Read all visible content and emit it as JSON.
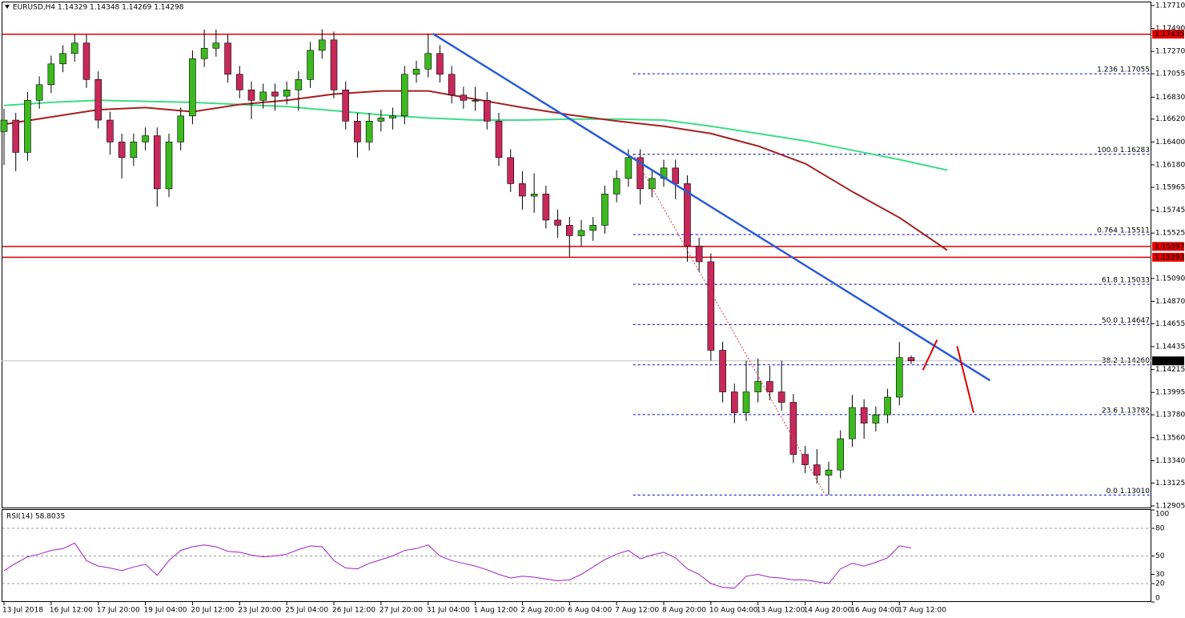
{
  "chart_data": [
    {
      "type": "candlestick",
      "title": "EURUSD,H4 1.14329 1.14348 1.14269 1.14298",
      "categories": [
        "13 Jul 2018",
        null,
        null,
        null,
        "16 Jul 12:00",
        null,
        null,
        null,
        "17 Jul 20:00",
        null,
        null,
        null,
        "19 Jul 04:00",
        null,
        null,
        null,
        "20 Jul 12:00",
        null,
        null,
        null,
        "23 Jul 20:00",
        null,
        null,
        null,
        "25 Jul 04:00",
        null,
        null,
        null,
        "26 Jul 12:00",
        null,
        null,
        null,
        "27 Jul 20:00",
        null,
        null,
        null,
        "31 Jul 04:00",
        null,
        null,
        null,
        "1 Aug 12:00",
        null,
        null,
        null,
        "2 Aug 20:00",
        null,
        null,
        null,
        "6 Aug 04:00",
        null,
        null,
        null,
        "7 Aug 12:00",
        null,
        null,
        null,
        "8 Aug 20:00",
        null,
        null,
        null,
        "10 Aug 04:00",
        null,
        null,
        null,
        "13 Aug 12:00",
        null,
        null,
        null,
        "14 Aug 20:00",
        null,
        null,
        null,
        "16 Aug 04:00",
        null,
        null,
        null,
        "17 Aug 12:00",
        null
      ],
      "open": [
        1.165,
        1.1661,
        1.163,
        1.168,
        1.1695,
        1.1715,
        1.1725,
        1.1735,
        1.17,
        1.1661,
        1.164,
        1.1625,
        1.164,
        1.1646,
        1.1595,
        1.164,
        1.1665,
        1.172,
        1.173,
        1.1735,
        1.1705,
        1.169,
        1.168,
        1.1688,
        1.1684,
        1.169,
        1.17,
        1.1728,
        1.1738,
        1.169,
        1.166,
        1.164,
        1.166,
        1.1663,
        1.1665,
        1.1705,
        1.171,
        1.1725,
        1.1705,
        1.1685,
        1.168,
        1.168,
        1.166,
        1.1625,
        1.16,
        1.1588,
        1.159,
        1.1565,
        1.156,
        1.155,
        1.1555,
        1.156,
        1.159,
        1.1605,
        1.1625,
        1.1595,
        1.1605,
        1.1615,
        1.16,
        1.154,
        1.1525,
        1.144,
        1.14,
        1.138,
        1.14,
        1.141,
        1.14,
        1.139,
        1.134,
        1.133,
        1.132,
        1.1325,
        1.1355,
        1.1385,
        1.137,
        1.1378,
        1.1395,
        1.14329
      ],
      "high": [
        1.1672,
        1.1668,
        1.1688,
        1.1703,
        1.1723,
        1.1733,
        1.1743,
        1.1743,
        1.1708,
        1.1669,
        1.1648,
        1.1648,
        1.1654,
        1.1654,
        1.1648,
        1.1673,
        1.1728,
        1.1748,
        1.1748,
        1.1743,
        1.1713,
        1.1698,
        1.1696,
        1.1696,
        1.1698,
        1.1708,
        1.1736,
        1.1748,
        1.1746,
        1.1698,
        1.1668,
        1.1668,
        1.1671,
        1.1673,
        1.1713,
        1.1718,
        1.1744,
        1.1733,
        1.1713,
        1.1693,
        1.1693,
        1.1688,
        1.1668,
        1.1633,
        1.1612,
        1.161,
        1.1598,
        1.1575,
        1.1568,
        1.1565,
        1.1568,
        1.1598,
        1.1613,
        1.1633,
        1.1633,
        1.1613,
        1.1623,
        1.1623,
        1.1608,
        1.1548,
        1.1533,
        1.1448,
        1.1408,
        1.143,
        1.1432,
        1.1425,
        1.143,
        1.1398,
        1.1348,
        1.1345,
        1.1333,
        1.1363,
        1.1397,
        1.1393,
        1.1386,
        1.1403,
        1.1448,
        1.14348
      ],
      "low": [
        1.1618,
        1.1612,
        1.1622,
        1.1672,
        1.1687,
        1.1707,
        1.1717,
        1.1692,
        1.1653,
        1.1628,
        1.1605,
        1.1617,
        1.1632,
        1.1578,
        1.1587,
        1.1632,
        1.1657,
        1.1712,
        1.1722,
        1.1697,
        1.1682,
        1.1662,
        1.1672,
        1.167,
        1.1676,
        1.167,
        1.1692,
        1.172,
        1.1682,
        1.1652,
        1.1625,
        1.1632,
        1.165,
        1.1652,
        1.1657,
        1.1697,
        1.1702,
        1.1697,
        1.1677,
        1.1672,
        1.167,
        1.1652,
        1.1617,
        1.1592,
        1.1575,
        1.1572,
        1.1557,
        1.1548,
        1.153,
        1.154,
        1.1545,
        1.1552,
        1.1582,
        1.1597,
        1.158,
        1.1587,
        1.1597,
        1.1585,
        1.1525,
        1.1515,
        1.143,
        1.139,
        1.137,
        1.1372,
        1.139,
        1.1392,
        1.1382,
        1.1332,
        1.1322,
        1.1312,
        1.1301,
        1.1317,
        1.1347,
        1.1355,
        1.1362,
        1.137,
        1.1387,
        1.14269
      ],
      "close": [
        1.1661,
        1.163,
        1.168,
        1.1695,
        1.1715,
        1.1725,
        1.1735,
        1.17,
        1.1661,
        1.164,
        1.1625,
        1.164,
        1.1646,
        1.1595,
        1.164,
        1.1665,
        1.172,
        1.173,
        1.1735,
        1.1705,
        1.169,
        1.168,
        1.1688,
        1.1684,
        1.169,
        1.17,
        1.1728,
        1.1738,
        1.169,
        1.166,
        1.164,
        1.166,
        1.1663,
        1.1665,
        1.1705,
        1.171,
        1.1725,
        1.1705,
        1.1685,
        1.168,
        1.168,
        1.166,
        1.1625,
        1.16,
        1.1588,
        1.159,
        1.1565,
        1.156,
        1.155,
        1.1555,
        1.156,
        1.159,
        1.1605,
        1.1625,
        1.1595,
        1.1605,
        1.1615,
        1.16,
        1.154,
        1.1525,
        1.144,
        1.14,
        1.138,
        1.14,
        1.141,
        1.14,
        1.139,
        1.134,
        1.133,
        1.132,
        1.1325,
        1.1355,
        1.1385,
        1.137,
        1.1378,
        1.1395,
        1.1433,
        1.14298
      ],
      "up_color": "#3cb91e",
      "down_color": "#c8285a",
      "ylim": [
        1.12882,
        1.17748
      ],
      "yticks": [
        {
          "value": 1.1771,
          "label": "1.17710"
        },
        {
          "value": 1.1749,
          "label": "1.17490"
        },
        {
          "value": 1.1727,
          "label": "1.17270"
        },
        {
          "value": 1.17055,
          "label": "1.17055"
        },
        {
          "value": 1.1683,
          "label": "1.16830"
        },
        {
          "value": 1.1662,
          "label": "1.16620"
        },
        {
          "value": 1.164,
          "label": "1.16400"
        },
        {
          "value": 1.1618,
          "label": "1.16180"
        },
        {
          "value": 1.15965,
          "label": "1.15965"
        },
        {
          "value": 1.15745,
          "label": "1.15745"
        },
        {
          "value": 1.15525,
          "label": "1.15525"
        },
        {
          "value": 1.1509,
          "label": "1.15090"
        },
        {
          "value": 1.1487,
          "label": "1.14870"
        },
        {
          "value": 1.14655,
          "label": "1.14655"
        },
        {
          "value": 1.14435,
          "label": "1.14435"
        },
        {
          "value": 1.14215,
          "label": "1.14215"
        },
        {
          "value": 1.13995,
          "label": "1.13995"
        },
        {
          "value": 1.1378,
          "label": "1.13780"
        },
        {
          "value": 1.1356,
          "label": "1.13560"
        },
        {
          "value": 1.1334,
          "label": "1.13340"
        },
        {
          "value": 1.13125,
          "label": "1.13125"
        },
        {
          "value": 1.12905,
          "label": "1.12905"
        }
      ],
      "ma": [
        {
          "color": "#3ddc84",
          "values": [
            1.1675,
            1.1678,
            1.168,
            1.1679,
            1.1678,
            1.1676,
            1.1674,
            1.167,
            1.1666,
            1.1663,
            1.1661,
            1.1661,
            1.1662,
            1.1662,
            1.1661,
            1.1655,
            1.1648,
            1.1641,
            1.1632,
            1.1623,
            1.1613
          ]
        },
        {
          "color": "#a52020",
          "values": [
            1.1657,
            1.1664,
            1.1671,
            1.1673,
            1.1669,
            1.1676,
            1.168,
            1.1686,
            1.1689,
            1.1689,
            1.1681,
            1.1673,
            1.1666,
            1.166,
            1.1655,
            1.1648,
            1.1636,
            1.1619,
            1.1592,
            1.1567,
            1.1536
          ]
        }
      ],
      "hlines": [
        {
          "value": 1.17435,
          "color": "#e00000"
        },
        {
          "value": 1.15397,
          "color": "#e00000"
        },
        {
          "value": 1.15293,
          "color": "#e00000"
        }
      ],
      "price_line": {
        "value": 1.14298,
        "color": "#c0c0c0"
      },
      "fib": {
        "color": "#0000cc",
        "levels": [
          {
            "value": 1.17055,
            "label": "1.236 1.17055"
          },
          {
            "value": 1.16283,
            "label": "100.0 1.16283"
          },
          {
            "value": 1.15511,
            "label": "0.764 1.15511"
          },
          {
            "value": 1.15033,
            "label": "61.8 1.15033"
          },
          {
            "value": 1.14647,
            "label": "50.0 1.14647"
          },
          {
            "value": 1.1426,
            "label": "38.2 1.14260"
          },
          {
            "value": 1.13782,
            "label": "23.6 1.13782"
          },
          {
            "value": 1.1301,
            "label": "0.0 1.13010"
          }
        ]
      },
      "fib_line": {
        "color": "#e04040",
        "x": [
          53.4,
          69.7
        ],
        "values": [
          1.16283,
          1.1301
        ]
      },
      "trendlines": [
        {
          "color": "#2a5bd7",
          "x": [
            36.4,
            83.7
          ],
          "values": [
            1.1744,
            1.1411
          ]
        },
        {
          "color": "#e00000",
          "x": [
            78.0,
            79.2
          ],
          "values": [
            1.1421,
            1.145
          ]
        },
        {
          "color": "#e00000",
          "x": [
            80.9,
            82.3
          ],
          "values": [
            1.1444,
            1.138
          ]
        }
      ]
    },
    {
      "type": "line",
      "title": "RSI(14) 58.8035",
      "series": [
        {
          "color": "#a020c0",
          "values": [
            34,
            42,
            49,
            52,
            56,
            58,
            64,
            45,
            39,
            37,
            34,
            38,
            41,
            29,
            45,
            56,
            60,
            62,
            60,
            55,
            54,
            51,
            49,
            50,
            52,
            57,
            61,
            60,
            45,
            37,
            36,
            42,
            46,
            50,
            56,
            58,
            62,
            50,
            45,
            42,
            39,
            35,
            30,
            26,
            28,
            27,
            25,
            23,
            24,
            30,
            38,
            46,
            52,
            56,
            47,
            51,
            54,
            48,
            36,
            30,
            20,
            16,
            15,
            28,
            30,
            27,
            26,
            24,
            24,
            22,
            20,
            36,
            42,
            39,
            43,
            48,
            61,
            58.8035
          ]
        }
      ],
      "ylim": [
        0,
        100
      ],
      "yticks": [
        0,
        20,
        30,
        50,
        80,
        100
      ],
      "levels": [
        20,
        50,
        80
      ]
    }
  ]
}
